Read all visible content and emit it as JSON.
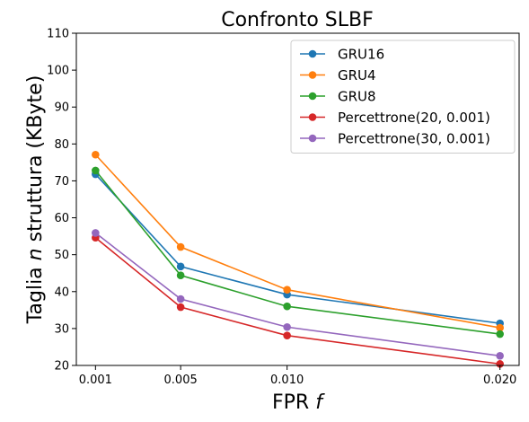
{
  "chart_data": {
    "type": "line",
    "title": "Confronto SLBF",
    "xlabel": "FPR",
    "xlabel_var": "f",
    "ylabel": "Taglia",
    "ylabel_var": "n",
    "ylabel_rest": "struttura (KByte)",
    "x": [
      0.001,
      0.005,
      0.01,
      0.02
    ],
    "xticks": [
      0.001,
      0.005,
      0.01,
      0.02
    ],
    "xtick_labels": [
      "0.001",
      "0.005",
      "0.010",
      "0.020"
    ],
    "xlim": [
      0.0001,
      0.0209
    ],
    "ylim": [
      20,
      110
    ],
    "yticks": [
      20,
      30,
      40,
      50,
      60,
      70,
      80,
      90,
      100,
      110
    ],
    "ytick_labels": [
      "20",
      "30",
      "40",
      "50",
      "60",
      "70",
      "80",
      "90",
      "100",
      "110"
    ],
    "grid": false,
    "legend_position": "top-right",
    "series": [
      {
        "name": "GRU16",
        "color": "#1f77b4",
        "values": [
          71.8,
          46.8,
          39.2,
          31.4
        ]
      },
      {
        "name": "GRU4",
        "color": "#ff7f0e",
        "values": [
          77.1,
          52.1,
          40.5,
          30.2
        ]
      },
      {
        "name": "GRU8",
        "color": "#2ca02c",
        "values": [
          72.8,
          44.4,
          36.0,
          28.5
        ]
      },
      {
        "name": "Percettrone(20, 0.001)",
        "color": "#d62728",
        "values": [
          54.6,
          35.8,
          28.1,
          20.4
        ]
      },
      {
        "name": "Percettrone(30, 0.001)",
        "color": "#9467bd",
        "values": [
          55.9,
          38.0,
          30.4,
          22.6
        ]
      }
    ]
  }
}
